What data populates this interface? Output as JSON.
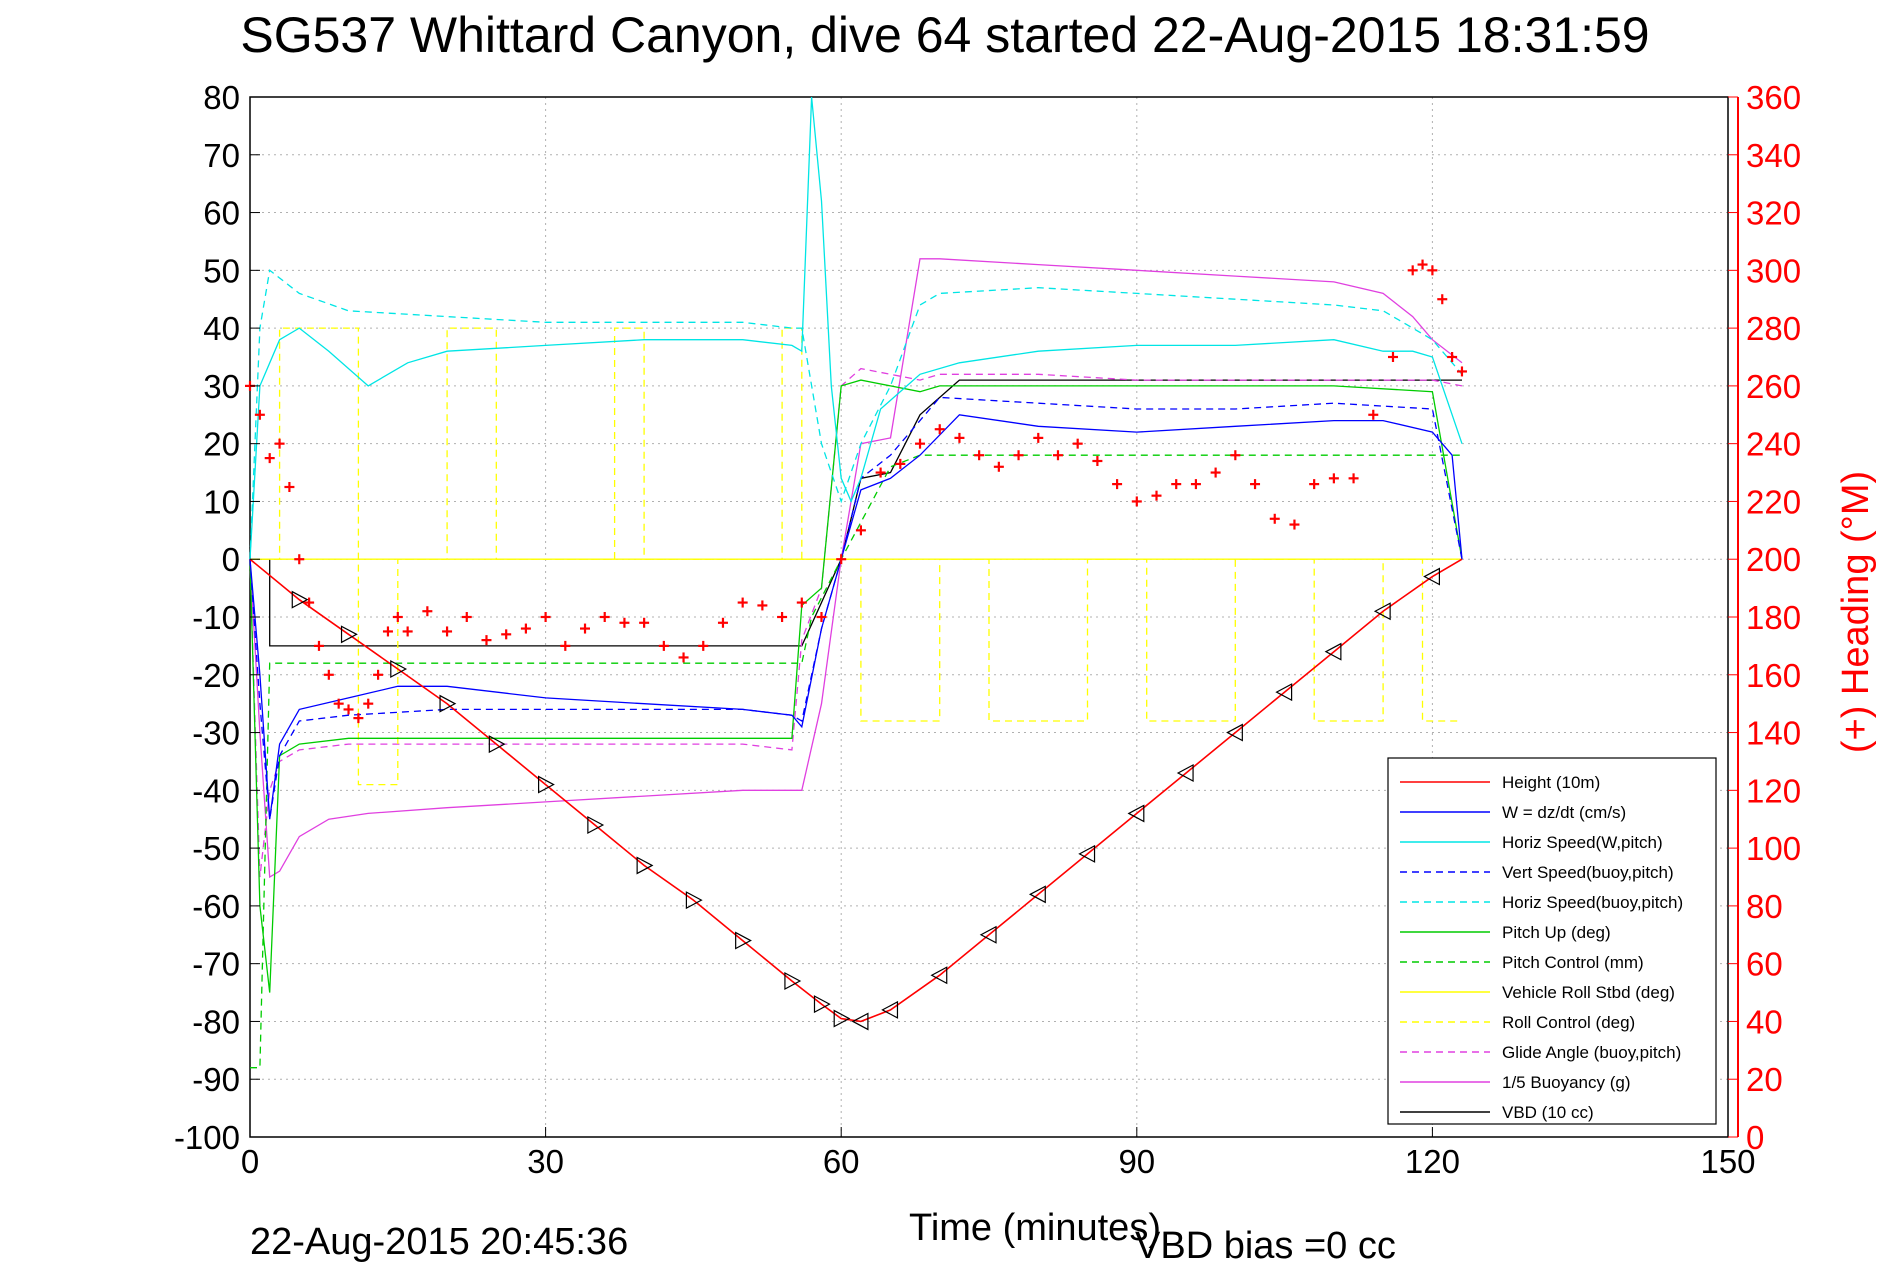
{
  "title": "SG537 Whittard Canyon, dive 64 started 22-Aug-2015 18:31:59",
  "footer": {
    "timestamp": "22-Aug-2015 20:45:36",
    "vbd_bias": "VBD bias =0 cc"
  },
  "chart_data": {
    "type": "line",
    "title": "SG537 Whittard Canyon, dive 64 started 22-Aug-2015 18:31:59",
    "xlabel": "Time (minutes)",
    "ylabel": "",
    "y2label": "(+) Heading (°M)",
    "xlim": [
      0,
      150
    ],
    "ylim": [
      -100,
      80
    ],
    "y2lim": [
      0,
      360
    ],
    "xticks": [
      "0",
      "30",
      "60",
      "90",
      "120",
      "150"
    ],
    "yticks": [
      "80",
      "70",
      "60",
      "50",
      "40",
      "30",
      "20",
      "10",
      "0",
      "-10",
      "-20",
      "-30",
      "-40",
      "-50",
      "-60",
      "-70",
      "-80",
      "-90",
      "-100"
    ],
    "y2ticks": [
      "360",
      "340",
      "320",
      "300",
      "280",
      "260",
      "240",
      "220",
      "200",
      "180",
      "160",
      "140",
      "120",
      "100",
      "80",
      "60",
      "40",
      "20",
      "0"
    ],
    "grid": true,
    "legend_position": "bottom-right",
    "series": [
      {
        "name": "Height (10m)",
        "color": "#ff0000",
        "style": "solid",
        "x": [
          0,
          5,
          10,
          15,
          20,
          25,
          30,
          35,
          40,
          45,
          50,
          55,
          58,
          60,
          62,
          65,
          70,
          75,
          80,
          85,
          90,
          95,
          100,
          105,
          110,
          115,
          120,
          123
        ],
        "y": [
          0,
          -7,
          -13,
          -19,
          -25,
          -32,
          -39,
          -46,
          -53,
          -59,
          -66,
          -73,
          -77,
          -79.5,
          -80,
          -78,
          -72,
          -65,
          -58,
          -51,
          -44,
          -37,
          -30,
          -23,
          -16,
          -9,
          -3,
          0
        ]
      },
      {
        "name": "W = dz/dt (cm/s)",
        "color": "#0000ff",
        "style": "solid",
        "x": [
          0,
          1,
          2,
          3,
          5,
          10,
          15,
          20,
          30,
          40,
          50,
          55,
          56,
          58,
          60,
          62,
          65,
          68,
          72,
          80,
          90,
          100,
          110,
          115,
          120,
          122,
          123
        ],
        "y": [
          0,
          -20,
          -45,
          -32,
          -26,
          -24,
          -22,
          -22,
          -24,
          -25,
          -26,
          -27,
          -29,
          -12,
          0,
          12,
          14,
          18,
          25,
          23,
          22,
          23,
          24,
          24,
          22,
          18,
          0
        ]
      },
      {
        "name": "Horiz Speed(W,pitch)",
        "color": "#00e5e5",
        "style": "solid",
        "x": [
          0,
          1,
          3,
          5,
          8,
          12,
          16,
          20,
          30,
          40,
          50,
          55,
          56,
          57,
          58,
          59,
          60,
          61,
          62,
          64,
          68,
          72,
          80,
          90,
          100,
          110,
          115,
          118,
          120,
          123
        ],
        "y": [
          0,
          30,
          38,
          40,
          36,
          30,
          34,
          36,
          37,
          38,
          38,
          37,
          36,
          80,
          62,
          30,
          14,
          10,
          14,
          26,
          32,
          34,
          36,
          37,
          37,
          38,
          36,
          36,
          35,
          20
        ]
      },
      {
        "name": "Vert Speed(buoy,pitch)",
        "color": "#0000ff",
        "style": "dashed",
        "x": [
          0,
          1,
          2,
          3,
          5,
          10,
          20,
          30,
          40,
          50,
          55,
          56,
          58,
          60,
          62,
          65,
          70,
          80,
          90,
          100,
          110,
          120,
          123
        ],
        "y": [
          0,
          -25,
          -45,
          -34,
          -28,
          -27,
          -26,
          -26,
          -26,
          -26,
          -27,
          -28,
          -12,
          0,
          14,
          18,
          28,
          27,
          26,
          26,
          27,
          26,
          0
        ]
      },
      {
        "name": "Horiz Speed(buoy,pitch)",
        "color": "#00e5e5",
        "style": "dashed",
        "x": [
          0,
          1,
          2,
          5,
          10,
          20,
          30,
          40,
          50,
          55,
          56,
          58,
          60,
          62,
          65,
          68,
          70,
          80,
          90,
          100,
          110,
          115,
          118,
          120,
          123
        ],
        "y": [
          0,
          40,
          50,
          46,
          43,
          42,
          41,
          41,
          41,
          40,
          40,
          20,
          10,
          20,
          30,
          44,
          46,
          47,
          46,
          45,
          44,
          43,
          40,
          38,
          32
        ]
      },
      {
        "name": "Pitch Up (deg)",
        "color": "#00cc00",
        "style": "solid",
        "x": [
          0,
          1,
          2,
          3,
          5,
          10,
          20,
          30,
          40,
          50,
          55,
          56,
          58,
          60,
          62,
          65,
          68,
          70,
          80,
          90,
          100,
          110,
          120,
          123
        ],
        "y": [
          0,
          -60,
          -75,
          -34,
          -32,
          -31,
          -31,
          -31,
          -31,
          -31,
          -31,
          -8,
          -5,
          30,
          31,
          30,
          29,
          30,
          30,
          30,
          30,
          30,
          29,
          0
        ]
      },
      {
        "name": "Pitch Control (mm)",
        "color": "#00cc00",
        "style": "dashed",
        "x": [
          0,
          1,
          2,
          3,
          56,
          57,
          60,
          65,
          68,
          120,
          123
        ],
        "y": [
          -88,
          -88,
          -18,
          -18,
          -18,
          -10,
          0,
          16,
          18,
          18,
          18
        ]
      },
      {
        "name": "Vehicle Roll Stbd (deg)",
        "color": "#ffff00",
        "style": "solid",
        "x": [
          0,
          120,
          123
        ],
        "y": [
          0,
          0,
          0
        ]
      },
      {
        "name": "Roll Control (deg)",
        "color": "#ffff00",
        "style": "dashed",
        "x": [
          0,
          3,
          3,
          11,
          11,
          15,
          15,
          20,
          20,
          25,
          25,
          37,
          37,
          40,
          40,
          54,
          54,
          56,
          56,
          62,
          62,
          70,
          70,
          75,
          75,
          85,
          85,
          91,
          91,
          100,
          100,
          108,
          108,
          115,
          115,
          119,
          119,
          123
        ],
        "y": [
          0,
          0,
          40,
          40,
          -39,
          -39,
          0,
          0,
          40,
          40,
          0,
          0,
          40,
          40,
          0,
          0,
          40,
          40,
          0,
          0,
          -28,
          -28,
          0,
          0,
          -28,
          -28,
          0,
          0,
          -28,
          -28,
          0,
          0,
          -28,
          -28,
          0,
          0,
          -28,
          -28
        ]
      },
      {
        "name": "Glide Angle (buoy,pitch)",
        "color": "#e040e0",
        "style": "dashed",
        "x": [
          0,
          1,
          2,
          3,
          5,
          10,
          20,
          30,
          40,
          50,
          55,
          56,
          58,
          60,
          62,
          65,
          68,
          70,
          80,
          90,
          100,
          110,
          120,
          123
        ],
        "y": [
          0,
          -55,
          -40,
          -35,
          -33,
          -32,
          -32,
          -32,
          -32,
          -32,
          -33,
          -14,
          -5,
          30,
          33,
          32,
          31,
          32,
          32,
          31,
          31,
          31,
          31,
          30
        ]
      },
      {
        "name": "1/5 Buoyancy (g)",
        "color": "#e040e0",
        "style": "solid",
        "x": [
          0,
          1,
          2,
          3,
          5,
          8,
          12,
          20,
          30,
          40,
          50,
          56,
          58,
          60,
          62,
          65,
          68,
          70,
          80,
          90,
          100,
          110,
          115,
          118,
          120,
          123
        ],
        "y": [
          0,
          -30,
          -55,
          -54,
          -48,
          -45,
          -44,
          -43,
          -42,
          -41,
          -40,
          -40,
          -25,
          0,
          20,
          21,
          52,
          52,
          51,
          50,
          49,
          48,
          46,
          42,
          38,
          34
        ]
      },
      {
        "name": "VBD (10 cc)",
        "color": "#000000",
        "style": "solid",
        "x": [
          0,
          2,
          2,
          56,
          56,
          60,
          62,
          65,
          68,
          72,
          120,
          123
        ],
        "y": [
          0,
          0,
          -15,
          -15,
          -15,
          0,
          14,
          15,
          25,
          31,
          31,
          31
        ]
      }
    ],
    "heading_series": {
      "name": "(+) Heading (°M)",
      "color": "#ff0000",
      "marker": "+",
      "axis": "right",
      "x": [
        0,
        1,
        2,
        3,
        4,
        5,
        6,
        7,
        8,
        9,
        10,
        11,
        12,
        13,
        14,
        15,
        16,
        18,
        20,
        22,
        24,
        26,
        28,
        30,
        32,
        34,
        36,
        38,
        40,
        42,
        44,
        46,
        48,
        50,
        52,
        54,
        56,
        58,
        60,
        62,
        64,
        66,
        68,
        70,
        72,
        74,
        76,
        78,
        80,
        82,
        84,
        86,
        88,
        90,
        92,
        94,
        96,
        98,
        100,
        102,
        104,
        106,
        108,
        110,
        112,
        114,
        116,
        118,
        119,
        120,
        121,
        122,
        123
      ],
      "y": [
        260,
        250,
        235,
        240,
        225,
        200,
        185,
        170,
        160,
        150,
        148,
        145,
        150,
        160,
        175,
        180,
        175,
        182,
        175,
        180,
        172,
        174,
        176,
        180,
        170,
        176,
        180,
        178,
        178,
        170,
        166,
        170,
        178,
        185,
        184,
        180,
        185,
        180,
        200,
        210,
        230,
        233,
        240,
        245,
        242,
        236,
        232,
        236,
        242,
        236,
        240,
        234,
        226,
        220,
        222,
        226,
        226,
        230,
        236,
        226,
        214,
        212,
        226,
        228,
        228,
        250,
        270,
        300,
        302,
        300,
        290,
        270,
        265
      ]
    }
  },
  "legend": [
    {
      "label": "Height (10m)",
      "color": "#ff0000",
      "dash": "solid"
    },
    {
      "label": "W = dz/dt (cm/s)",
      "color": "#0000ff",
      "dash": "solid"
    },
    {
      "label": "Horiz Speed(W,pitch)",
      "color": "#00e5e5",
      "dash": "solid"
    },
    {
      "label": "Vert Speed(buoy,pitch)",
      "color": "#0000ff",
      "dash": "dashed"
    },
    {
      "label": "Horiz Speed(buoy,pitch)",
      "color": "#00e5e5",
      "dash": "dashed"
    },
    {
      "label": "Pitch Up (deg)",
      "color": "#00cc00",
      "dash": "solid"
    },
    {
      "label": "Pitch Control (mm)",
      "color": "#00cc00",
      "dash": "dashed"
    },
    {
      "label": "Vehicle Roll Stbd (deg)",
      "color": "#ffff00",
      "dash": "solid"
    },
    {
      "label": "Roll Control (deg)",
      "color": "#ffff00",
      "dash": "dashed"
    },
    {
      "label": "Glide Angle (buoy,pitch)",
      "color": "#e040e0",
      "dash": "dashed"
    },
    {
      "label": "1/5 Buoyancy (g)",
      "color": "#e040e0",
      "dash": "solid"
    },
    {
      "label": "VBD (10 cc)",
      "color": "#000000",
      "dash": "solid"
    }
  ]
}
